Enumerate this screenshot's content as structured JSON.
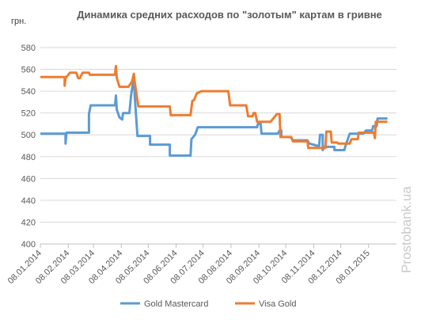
{
  "chart_data": {
    "type": "line",
    "title": "Динамика средних расходов по \"золотым\" картам в гривне",
    "ylabel": "грн.",
    "xlabel": "",
    "ylim": [
      400,
      580
    ],
    "yticks": [
      400,
      420,
      440,
      460,
      480,
      500,
      520,
      540,
      560,
      580
    ],
    "xlim": [
      "2014-01-08",
      "2015-02-08"
    ],
    "xticks": [
      "08.01.2014",
      "08.02.2014",
      "08.03.2014",
      "08.04.2014",
      "08.05.2014",
      "08.06.2014",
      "08.07.2014",
      "08.08.2014",
      "08.09.2014",
      "08.10.2014",
      "08.11.2014",
      "08.12.2014",
      "08.01.2015"
    ],
    "grid": "horizontal",
    "legend": "bottom",
    "series": [
      {
        "name": "Gold Mastercard",
        "color": "#5b9bd5",
        "points": [
          [
            "2014-01-08",
            501
          ],
          [
            "2014-02-05",
            501
          ],
          [
            "2014-02-05",
            492
          ],
          [
            "2014-02-06",
            502
          ],
          [
            "2014-03-03",
            502
          ],
          [
            "2014-03-03",
            519
          ],
          [
            "2014-03-05",
            527
          ],
          [
            "2014-04-01",
            527
          ],
          [
            "2014-04-02",
            536
          ],
          [
            "2014-04-03",
            523
          ],
          [
            "2014-04-06",
            516
          ],
          [
            "2014-04-09",
            514
          ],
          [
            "2014-04-10",
            520
          ],
          [
            "2014-04-17",
            520
          ],
          [
            "2014-04-19",
            537
          ],
          [
            "2014-04-22",
            553
          ],
          [
            "2014-04-23",
            535
          ],
          [
            "2014-04-26",
            499
          ],
          [
            "2014-05-10",
            499
          ],
          [
            "2014-05-10",
            491
          ],
          [
            "2014-06-01",
            491
          ],
          [
            "2014-06-01",
            481
          ],
          [
            "2014-06-24",
            481
          ],
          [
            "2014-06-25",
            496
          ],
          [
            "2014-06-29",
            500
          ],
          [
            "2014-07-02",
            507
          ],
          [
            "2014-09-06",
            507
          ],
          [
            "2014-09-07",
            510
          ],
          [
            "2014-09-10",
            510
          ],
          [
            "2014-09-11",
            501
          ],
          [
            "2014-09-29",
            501
          ],
          [
            "2014-10-01",
            504
          ],
          [
            "2014-10-03",
            504
          ],
          [
            "2014-10-03",
            498
          ],
          [
            "2014-10-13",
            498
          ],
          [
            "2014-10-16",
            495
          ],
          [
            "2014-11-01",
            495
          ],
          [
            "2014-11-03",
            492
          ],
          [
            "2014-11-12",
            490
          ],
          [
            "2014-11-14",
            490
          ],
          [
            "2014-11-15",
            500
          ],
          [
            "2014-11-18",
            500
          ],
          [
            "2014-11-18",
            486
          ],
          [
            "2014-11-20",
            489
          ],
          [
            "2014-12-01",
            489
          ],
          [
            "2014-12-01",
            486
          ],
          [
            "2014-12-12",
            486
          ],
          [
            "2014-12-13",
            489
          ],
          [
            "2014-12-18",
            501
          ],
          [
            "2015-01-02",
            501
          ],
          [
            "2015-01-05",
            504
          ],
          [
            "2015-01-12",
            504
          ],
          [
            "2015-01-13",
            508
          ],
          [
            "2015-01-17",
            508
          ],
          [
            "2015-01-18",
            515
          ],
          [
            "2015-01-29",
            515
          ]
        ]
      },
      {
        "name": "Visa Gold",
        "color": "#ed7d31",
        "points": [
          [
            "2014-01-08",
            553
          ],
          [
            "2014-02-04",
            553
          ],
          [
            "2014-02-04",
            545
          ],
          [
            "2014-02-05",
            552
          ],
          [
            "2014-02-10",
            557
          ],
          [
            "2014-02-17",
            557
          ],
          [
            "2014-02-19",
            552
          ],
          [
            "2014-02-21",
            552
          ],
          [
            "2014-02-24",
            557
          ],
          [
            "2014-03-03",
            557
          ],
          [
            "2014-03-04",
            555
          ],
          [
            "2014-04-01",
            555
          ],
          [
            "2014-04-02",
            563
          ],
          [
            "2014-04-03",
            552
          ],
          [
            "2014-04-06",
            544
          ],
          [
            "2014-04-16",
            544
          ],
          [
            "2014-04-20",
            549
          ],
          [
            "2014-04-22",
            556
          ],
          [
            "2014-04-23",
            548
          ],
          [
            "2014-04-27",
            526
          ],
          [
            "2014-06-01",
            526
          ],
          [
            "2014-06-02",
            518
          ],
          [
            "2014-06-24",
            518
          ],
          [
            "2014-06-26",
            531
          ],
          [
            "2014-06-28",
            532
          ],
          [
            "2014-07-01",
            538
          ],
          [
            "2014-07-06",
            540
          ],
          [
            "2014-08-05",
            540
          ],
          [
            "2014-08-07",
            527
          ],
          [
            "2014-08-25",
            527
          ],
          [
            "2014-08-27",
            517
          ],
          [
            "2014-09-01",
            517
          ],
          [
            "2014-09-02",
            520
          ],
          [
            "2014-09-04",
            520
          ],
          [
            "2014-09-06",
            512
          ],
          [
            "2014-09-21",
            512
          ],
          [
            "2014-09-23",
            514
          ],
          [
            "2014-09-28",
            519
          ],
          [
            "2014-10-01",
            519
          ],
          [
            "2014-10-02",
            498
          ],
          [
            "2014-10-14",
            498
          ],
          [
            "2014-10-16",
            494
          ],
          [
            "2014-11-01",
            494
          ],
          [
            "2014-11-02",
            488
          ],
          [
            "2014-11-21",
            488
          ],
          [
            "2014-11-22",
            503
          ],
          [
            "2014-11-27",
            503
          ],
          [
            "2014-11-28",
            493
          ],
          [
            "2014-12-04",
            493
          ],
          [
            "2014-12-05",
            492
          ],
          [
            "2014-12-18",
            492
          ],
          [
            "2014-12-20",
            496
          ],
          [
            "2014-12-27",
            496
          ],
          [
            "2014-12-28",
            502
          ],
          [
            "2015-01-14",
            502
          ],
          [
            "2015-01-15",
            497
          ],
          [
            "2015-01-16",
            512
          ],
          [
            "2015-01-29",
            512
          ]
        ]
      }
    ]
  },
  "watermark": "Prostobank.ua"
}
